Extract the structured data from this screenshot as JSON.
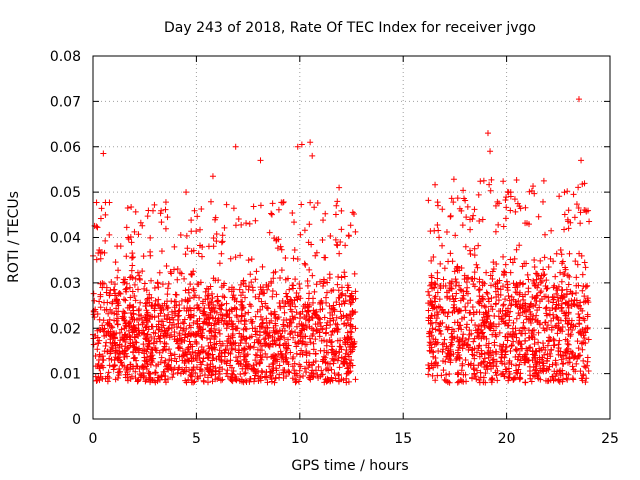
{
  "chart_data": {
    "type": "scatter",
    "title": "Day 243 of 2018, Rate Of TEC Index for receiver jvgo",
    "xlabel": "GPS time / hours",
    "ylabel": "ROTI / TECUs",
    "xlim": [
      0,
      25
    ],
    "ylim": [
      0,
      0.08
    ],
    "x_ticks": [
      0,
      5,
      10,
      15,
      20,
      25
    ],
    "x_tick_labels": [
      "0",
      "5",
      "10",
      "15",
      "20",
      "25"
    ],
    "y_ticks": [
      0,
      0.01,
      0.02,
      0.03,
      0.04,
      0.05,
      0.06,
      0.07,
      0.08
    ],
    "y_tick_labels": [
      "0",
      "0.01",
      "0.02",
      "0.03",
      "0.04",
      "0.05",
      "0.06",
      "0.07",
      "0.08"
    ],
    "grid": true,
    "marker": "+",
    "color": "#ff0000",
    "series": [
      {
        "name": "ROTI",
        "segments": [
          {
            "x_start": 0.0,
            "x_end": 12.7,
            "typical_min": 0.008,
            "typical_max": 0.035
          },
          {
            "x_start": 16.2,
            "x_end": 24.0,
            "typical_min": 0.008,
            "typical_max": 0.04
          }
        ],
        "notable_points": [
          [
            0.5,
            0.0585
          ],
          [
            0.6,
            0.045
          ],
          [
            1.7,
            0.04
          ],
          [
            4.5,
            0.05
          ],
          [
            5.8,
            0.0535
          ],
          [
            6.9,
            0.06
          ],
          [
            8.1,
            0.057
          ],
          [
            9.9,
            0.06
          ],
          [
            10.1,
            0.0605
          ],
          [
            10.5,
            0.061
          ],
          [
            10.6,
            0.058
          ],
          [
            11.9,
            0.051
          ],
          [
            16.5,
            0.0415
          ],
          [
            19.1,
            0.063
          ],
          [
            19.2,
            0.059
          ],
          [
            18.9,
            0.0525
          ],
          [
            20.2,
            0.05
          ],
          [
            23.5,
            0.0705
          ],
          [
            23.6,
            0.057
          ],
          [
            23.0,
            0.046
          ]
        ]
      }
    ]
  }
}
